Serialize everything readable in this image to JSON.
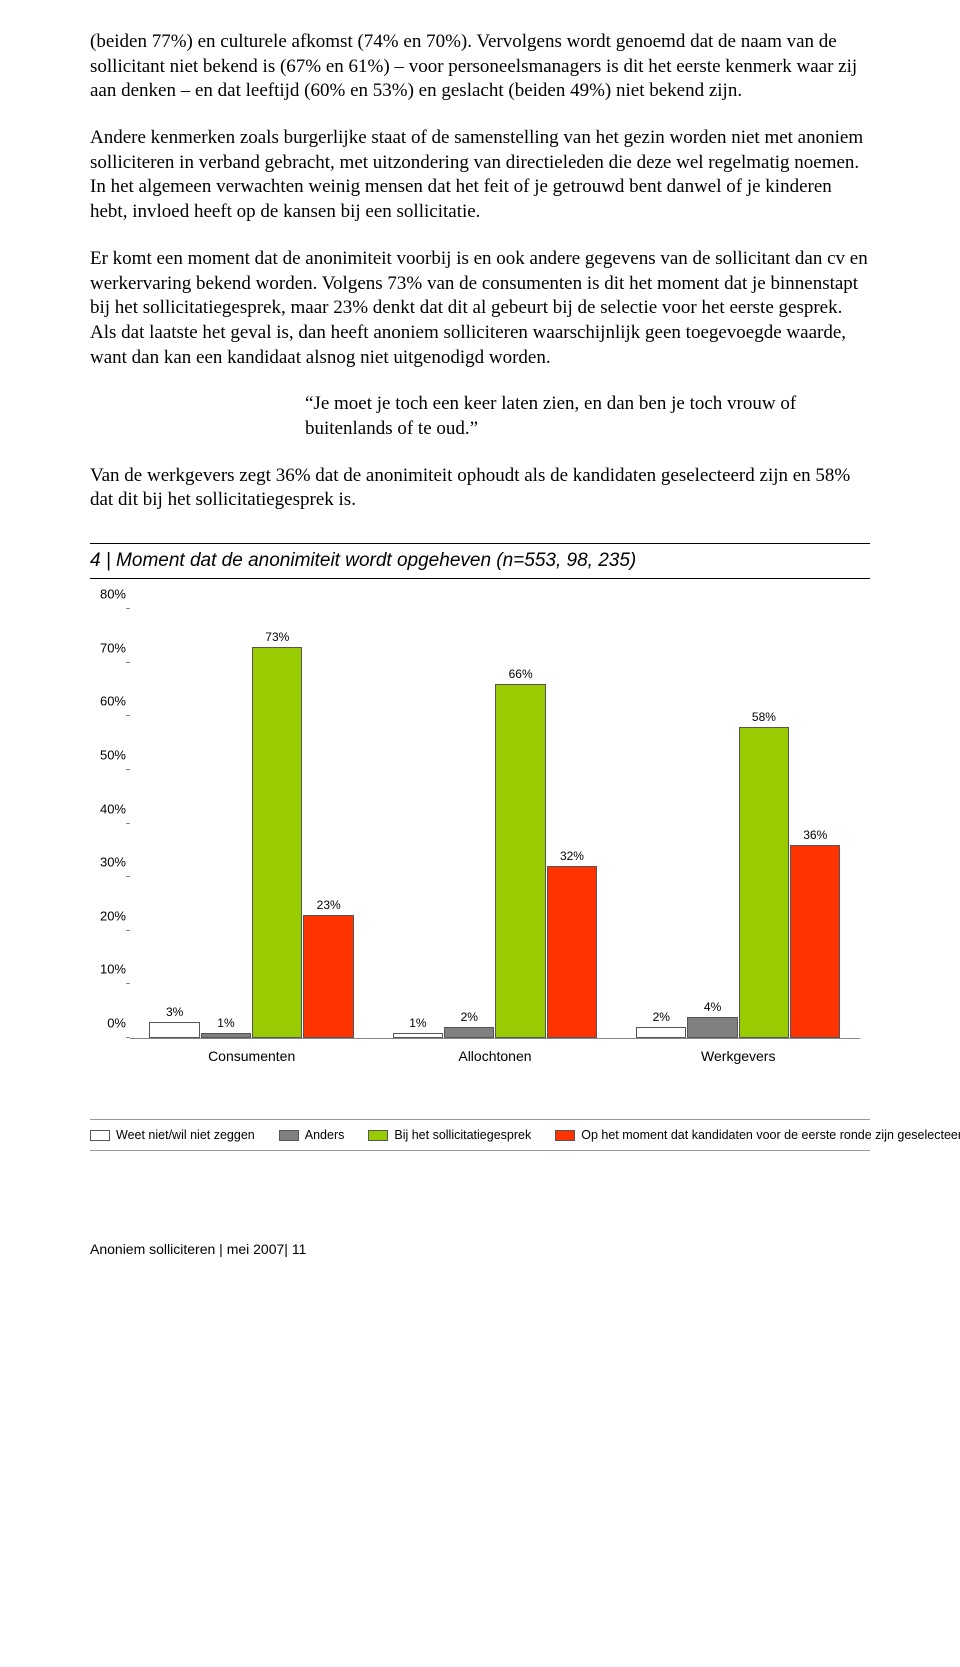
{
  "paragraphs": {
    "p1": "(beiden 77%) en culturele afkomst (74% en 70%). Vervolgens wordt genoemd dat de naam van de sollicitant niet bekend is (67% en 61%) – voor personeelsmanagers is dit het eerste kenmerk waar zij aan denken – en dat leeftijd (60% en 53%) en geslacht (beiden 49%) niet bekend zijn.",
    "p2": "Andere kenmerken zoals burgerlijke staat of de samenstelling van het gezin worden niet met anoniem solliciteren in verband gebracht, met uitzondering van directieleden die deze wel regelmatig noemen. In het algemeen verwachten weinig mensen dat het feit of je getrouwd bent danwel of je kinderen hebt, invloed heeft op de kansen bij een sollicitatie.",
    "p3": "Er komt een moment dat de anonimiteit voorbij is en ook andere gegevens van de sollicitant dan cv en werkervaring bekend worden. Volgens 73% van de consumenten is dit het moment dat je binnenstapt bij het sollicitatiegesprek, maar 23% denkt dat dit al gebeurt bij de selectie voor het eerste gesprek. Als dat laatste het geval is, dan heeft anoniem solliciteren waarschijnlijk geen toegevoegde waarde, want dan kan een kandidaat alsnog niet uitgenodigd worden.",
    "quote": "“Je moet je toch een keer laten zien, en dan ben je toch vrouw of buitenlands of te oud.”",
    "p4": "Van de werkgevers zegt 36% dat de anonimiteit ophoudt als de kandidaten geselecteerd zijn en 58% dat dit bij het sollicitatiegesprek is."
  },
  "chart": {
    "title": "4 | Moment dat de anonimiteit wordt opgeheven (n=553, 98, 235)",
    "type": "bar",
    "ymax": 80,
    "ytick_step": 10,
    "yticks": [
      "0%",
      "10%",
      "20%",
      "30%",
      "40%",
      "50%",
      "60%",
      "70%",
      "80%"
    ],
    "groups": [
      "Consumenten",
      "Allochtonen",
      "Werkgevers"
    ],
    "series": [
      {
        "label": "Weet niet/wil niet zeggen",
        "color": "#ffffff"
      },
      {
        "label": "Anders",
        "color": "#808080"
      },
      {
        "label": "Bij het sollicitatiegesprek",
        "color": "#99cc00"
      },
      {
        "label": "Op het moment dat kandidaten voor de eerste ronde zijn geselecteerd",
        "color": "#ff3300"
      }
    ],
    "values": [
      [
        3,
        1,
        73,
        23
      ],
      [
        1,
        2,
        66,
        32
      ],
      [
        2,
        4,
        58,
        36
      ]
    ],
    "value_labels": [
      [
        "3%",
        "1%",
        "73%",
        "23%"
      ],
      [
        "1%",
        "2%",
        "66%",
        "32%"
      ],
      [
        "2%",
        "4%",
        "58%",
        "36%"
      ]
    ],
    "background_color": "#ffffff",
    "axis_color": "#888888",
    "label_fontsize": 13
  },
  "footer": "Anoniem solliciteren | mei 2007| 11"
}
